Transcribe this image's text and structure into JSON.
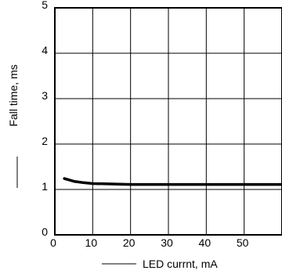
{
  "chart_data": {
    "type": "line",
    "xlabel": "LED currnt, mA",
    "ylabel": "Fall time, ms",
    "xlim": [
      0,
      60
    ],
    "ylim": [
      0,
      5
    ],
    "xticks": [
      0,
      10,
      20,
      30,
      40,
      50
    ],
    "yticks": [
      0,
      1,
      2,
      3,
      4,
      5
    ],
    "grid": true,
    "series": [
      {
        "x": [
          2.5,
          5,
          7.5,
          10,
          15,
          20,
          30,
          40,
          50,
          60
        ],
        "y": [
          1.24,
          1.18,
          1.15,
          1.13,
          1.12,
          1.11,
          1.11,
          1.11,
          1.11,
          1.11
        ]
      }
    ]
  }
}
